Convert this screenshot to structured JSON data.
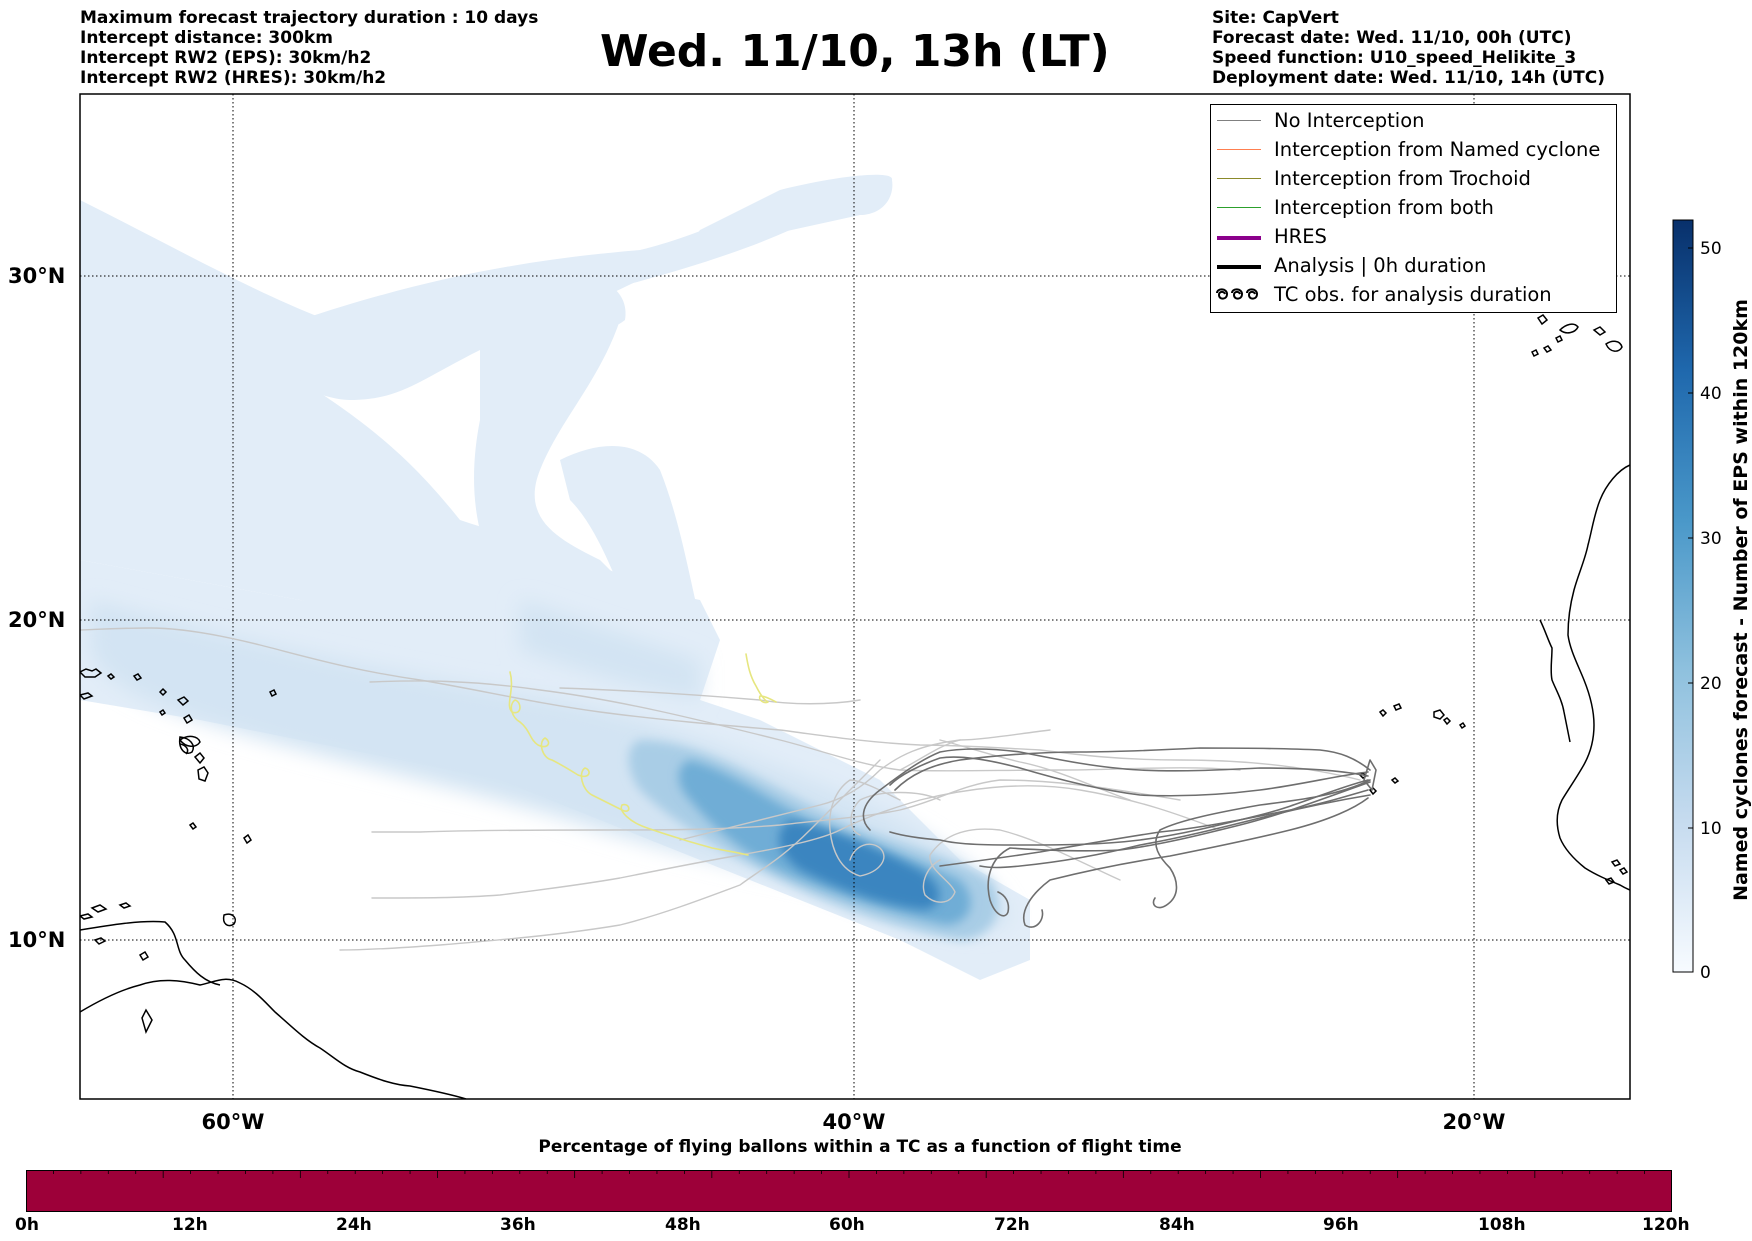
{
  "header_left": [
    "Maximum forecast trajectory duration : 10 days",
    "Intercept distance: 300km",
    "Intercept RW2 (EPS):  30km/h2",
    "Intercept RW2 (HRES): 30km/h2"
  ],
  "title": "Wed. 11/10, 13h (LT)",
  "header_right": [
    "Site: CapVert",
    "Forecast date: Wed. 11/10, 00h (UTC)",
    "Speed function: U10_speed_Helikite_3",
    "Deployment date: Wed. 11/10, 14h (UTC)"
  ],
  "map": {
    "lat_labels": [
      "30°N",
      "20°N",
      "10°N"
    ],
    "lon_labels": [
      "60°W",
      "40°W",
      "20°W"
    ],
    "gridlines": "dotted",
    "density_palette": "Blues"
  },
  "legend": {
    "placement": "top-right",
    "items": [
      {
        "label": "No Interception",
        "color": "#808080",
        "style": "thin-line"
      },
      {
        "label": "Interception from Named cyclone",
        "color": "#ff7f50",
        "style": "thin-line"
      },
      {
        "label": "Interception from Trochoid",
        "color": "#8b8a2a",
        "style": "thin-line"
      },
      {
        "label": "Interception from both",
        "color": "#2ca02c",
        "style": "thin-line"
      },
      {
        "label": "HRES",
        "color": "#8b008b",
        "style": "thick-line"
      },
      {
        "label": "Analysis | 0h duration",
        "color": "#000000",
        "style": "thick-line"
      },
      {
        "label": "TC obs. for analysis duration",
        "color": "#000000",
        "style": "loops"
      }
    ]
  },
  "colorbar": {
    "title": "Named cyclones forecast - Number of EPS within 120km",
    "ticks": [
      "0",
      "10",
      "20",
      "30",
      "40",
      "50"
    ],
    "range": [
      0,
      52
    ],
    "color_low": "#f7fbff",
    "color_high": "#08306b"
  },
  "bottom_bar": {
    "title": "Percentage of flying ballons within a TC as a function of flight time",
    "ticks": [
      "0h",
      "12h",
      "24h",
      "36h",
      "48h",
      "60h",
      "72h",
      "84h",
      "96h",
      "108h",
      "120h"
    ],
    "color": "#9d0039"
  }
}
